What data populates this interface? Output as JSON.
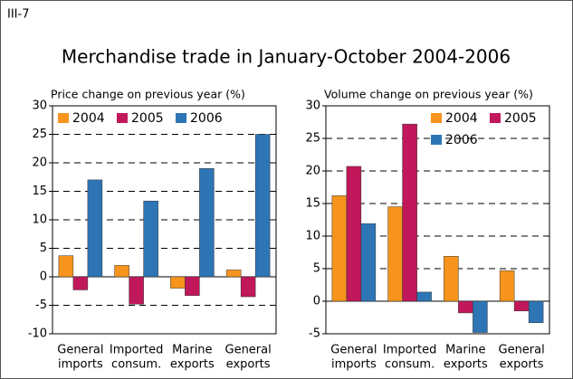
{
  "header": {
    "label": "III-7",
    "title": "Merchandise trade in January-October 2004-2006"
  },
  "chart_data": [
    {
      "type": "bar",
      "y_label": "Price change on previous year (%)",
      "categories": [
        [
          "General",
          "imports"
        ],
        [
          "Imported",
          "consum."
        ],
        [
          "Marine",
          "exports"
        ],
        [
          "General",
          "exports"
        ]
      ],
      "series": [
        {
          "name": "2004",
          "color": "#f7941d",
          "values": [
            3.7,
            2.0,
            -2.0,
            1.2
          ]
        },
        {
          "name": "2005",
          "color": "#c0185a",
          "values": [
            -2.3,
            -4.8,
            -3.3,
            -3.5
          ]
        },
        {
          "name": "2006",
          "color": "#2e75b6",
          "values": [
            17,
            13.3,
            19,
            25
          ]
        }
      ],
      "ylim": [
        -10,
        30
      ],
      "yticks": [
        -10,
        -5,
        0,
        5,
        10,
        15,
        20,
        25,
        30
      ],
      "grid": true,
      "legend": "upper left"
    },
    {
      "type": "bar",
      "y_label": "Volume change on previous year (%)",
      "categories": [
        [
          "General",
          "imports"
        ],
        [
          "Imported",
          "consum."
        ],
        [
          "Marine",
          "exports"
        ],
        [
          "General",
          "exports"
        ]
      ],
      "series": [
        {
          "name": "2004",
          "color": "#f7941d",
          "values": [
            16.2,
            14.5,
            6.9,
            4.7
          ]
        },
        {
          "name": "2005",
          "color": "#c0185a",
          "values": [
            20.7,
            27.2,
            -1.8,
            -1.5
          ]
        },
        {
          "name": "2006",
          "color": "#2e75b6",
          "values": [
            11.9,
            1.4,
            -4.8,
            -3.3
          ]
        }
      ],
      "ylim": [
        -5,
        30
      ],
      "yticks": [
        -5,
        0,
        5,
        10,
        15,
        20,
        25,
        30
      ],
      "grid": true,
      "legend": "upper right"
    }
  ]
}
